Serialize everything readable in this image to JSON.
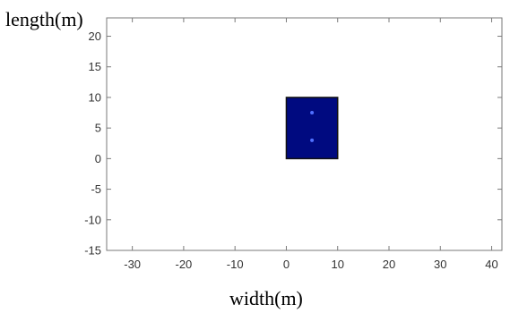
{
  "chart_data": {
    "type": "scatter",
    "title": "",
    "xlabel": "width(m)",
    "ylabel": "length(m)",
    "xlim": [
      -35,
      42
    ],
    "ylim": [
      -15,
      23
    ],
    "x_ticks": [
      -30,
      -20,
      -10,
      0,
      10,
      20,
      30,
      40
    ],
    "y_ticks": [
      -15,
      -10,
      -5,
      0,
      5,
      10,
      15,
      20
    ],
    "grid": false,
    "region": {
      "x": [
        0,
        10
      ],
      "y": [
        0,
        10
      ],
      "fill": "#000a80",
      "stroke": "#111111"
    },
    "points": [
      {
        "x": 5,
        "y": 7.5
      },
      {
        "x": 5,
        "y": 3
      }
    ],
    "point_color": "#5070ff",
    "axis_color": "#7a7a7a"
  }
}
